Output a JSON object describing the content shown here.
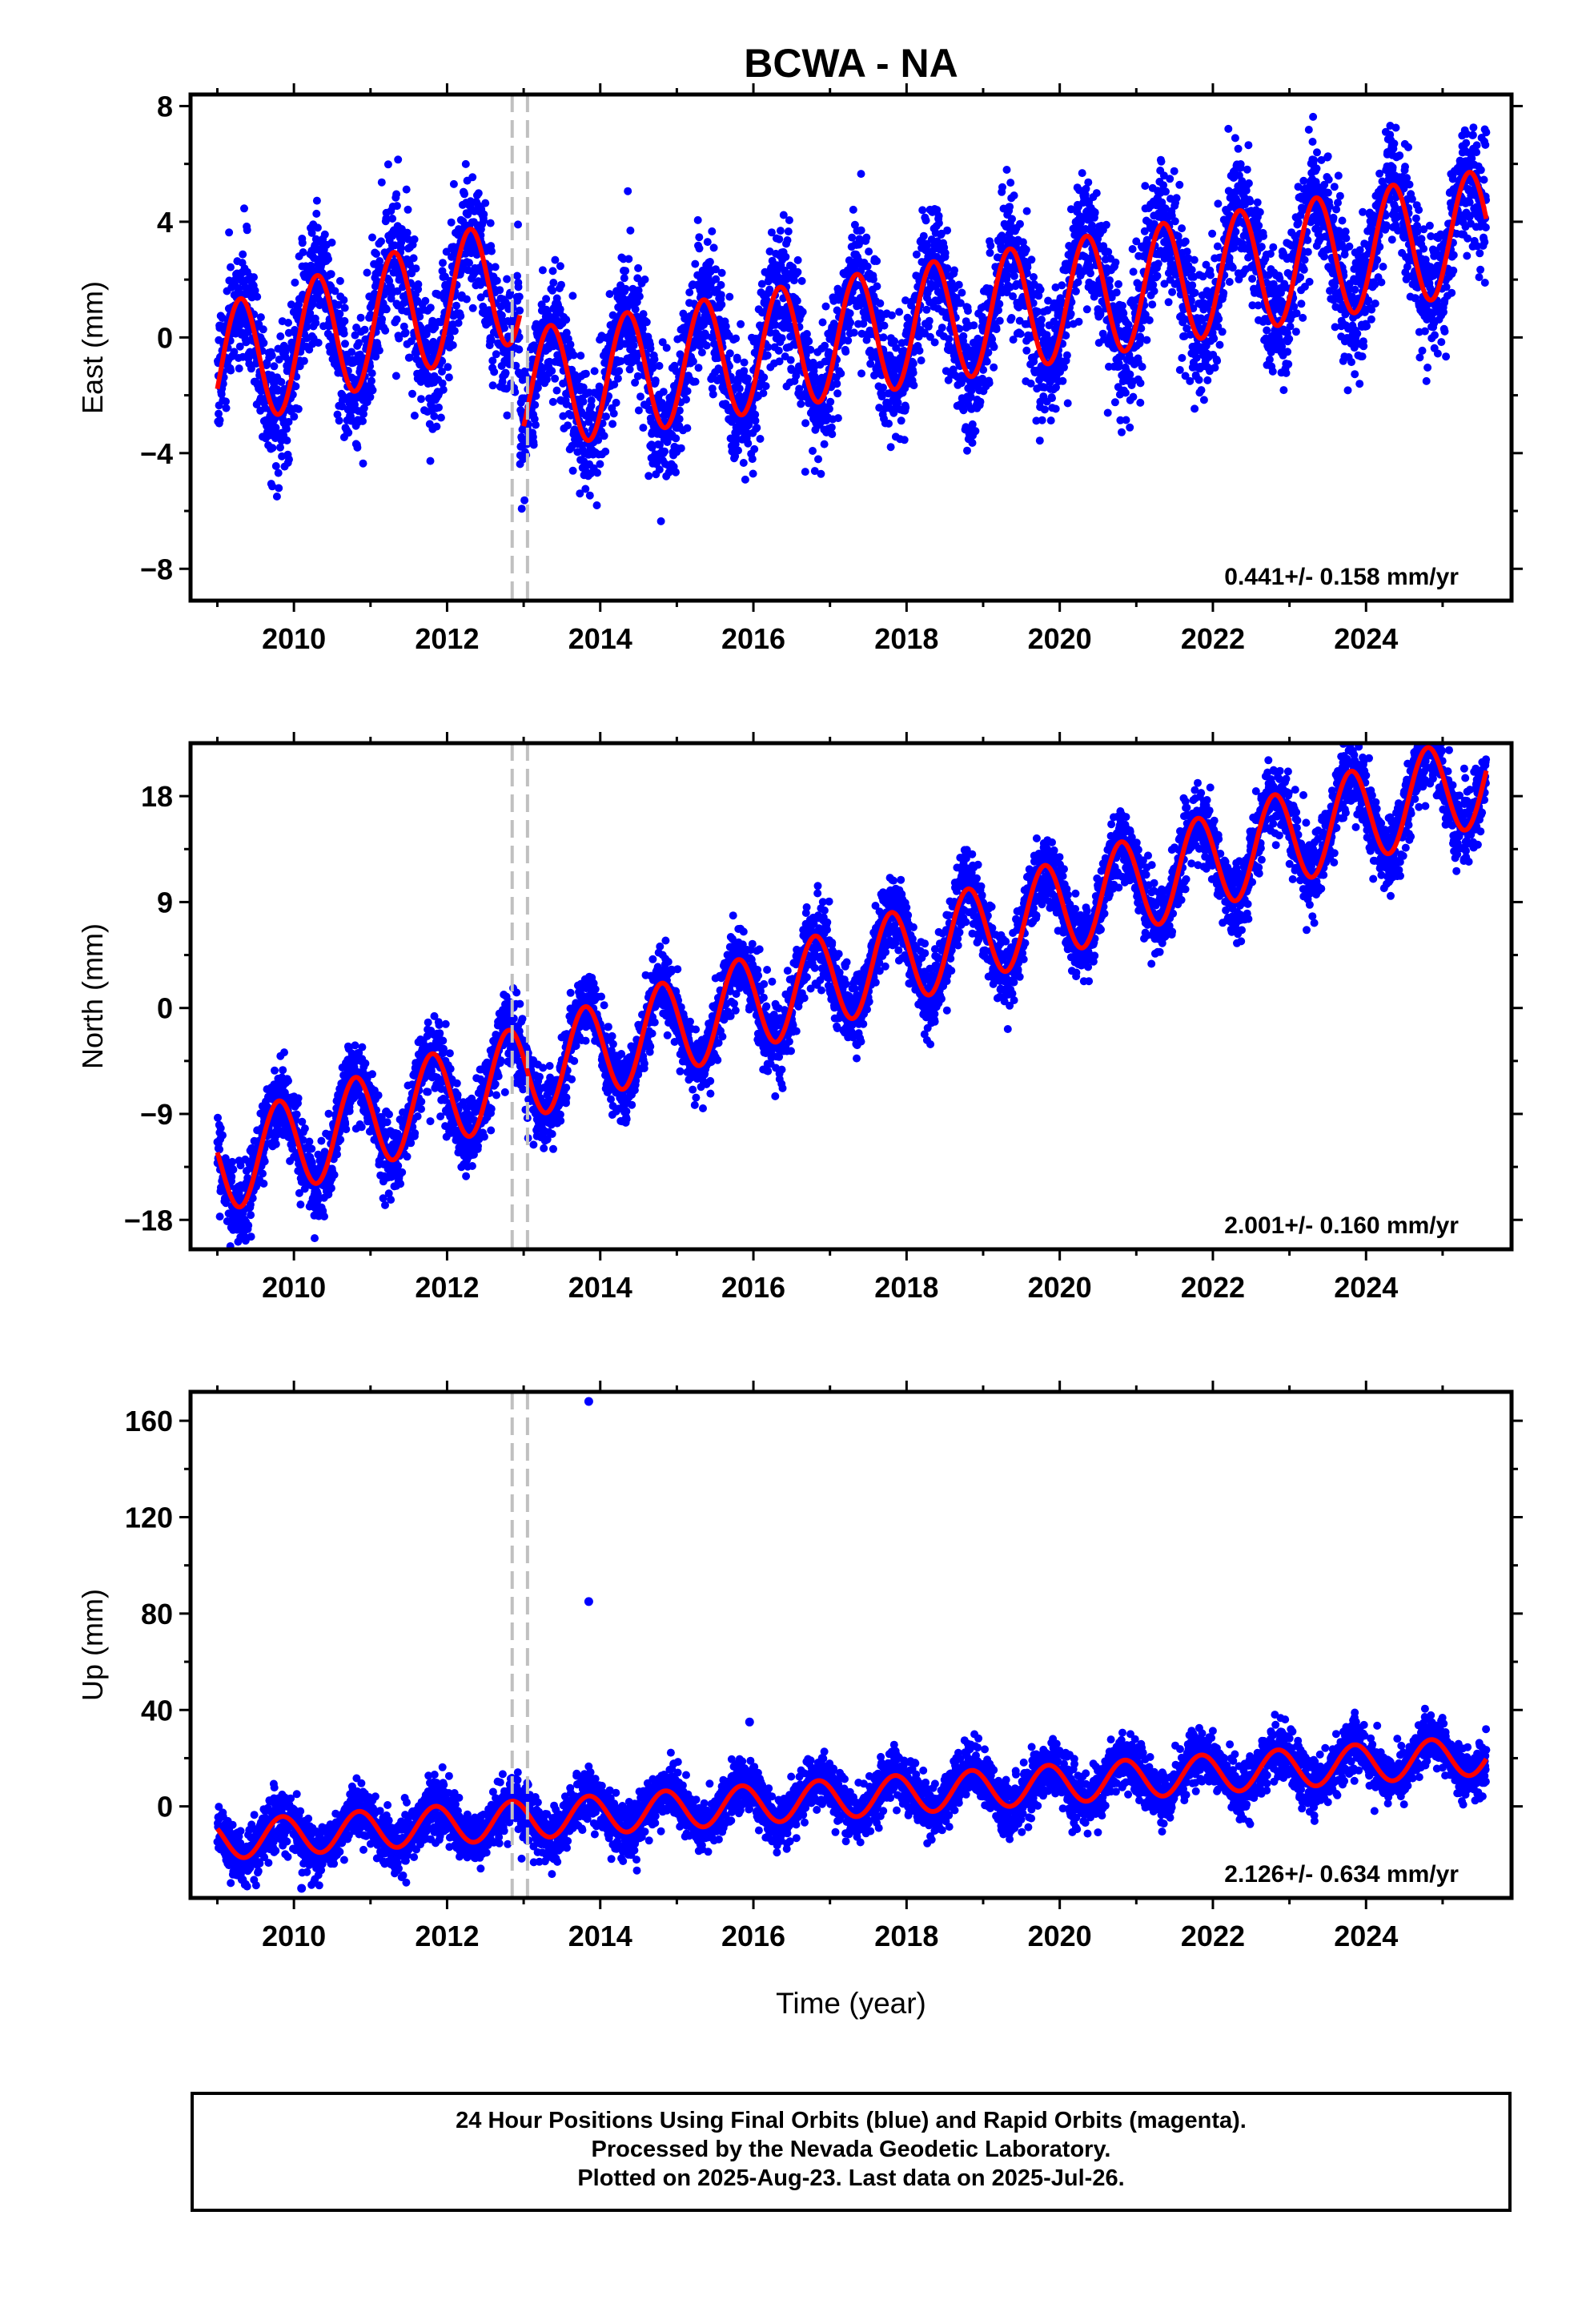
{
  "figure": {
    "title": "BCWA - NA",
    "xlabel": "Time (year)"
  },
  "colors": {
    "points": "#0000ff",
    "model": "#ff0000",
    "breaks": "#c0c0c0",
    "frame": "#000000"
  },
  "chart_data": [
    {
      "type": "scatter",
      "ylabel": "East (mm)",
      "rate_label": "0.441+/- 0.158 mm/yr",
      "xlim": [
        2008.65,
        2025.9
      ],
      "ylim": [
        -9.1,
        8.4
      ],
      "yticks": [
        -8,
        -4,
        0,
        4,
        8
      ],
      "xticks": [
        2010,
        2012,
        2014,
        2016,
        2018,
        2020,
        2022,
        2024
      ],
      "breaks": [
        2012.85,
        2013.05
      ],
      "data_span": [
        2009.0,
        2025.57
      ],
      "rate": 0.441,
      "seasonal_amplitude": 2.3,
      "noise": 1.1,
      "series": [
        {
          "type": "scatter",
          "values_summary": "daily positions, blue"
        },
        {
          "type": "line",
          "values_summary": "model fit, red",
          "segments": [
            {
              "range": [
                2009.0,
                2012.95
              ],
              "offset": -1.1,
              "trend": 0.8,
              "amplitude": 2.2,
              "phase": 0.05
            },
            {
              "range": [
                2013.0,
                2025.57
              ],
              "offset": -3.6,
              "trend": 0.441,
              "amplitude": 2.1,
              "phase": 0.1
            }
          ]
        }
      ]
    },
    {
      "type": "scatter",
      "ylabel": "North (mm)",
      "rate_label": "2.001+/- 0.160 mm/yr",
      "xlim": [
        2008.65,
        2025.9
      ],
      "ylim": [
        -20.5,
        22.5
      ],
      "yticks": [
        -18,
        -9,
        0,
        9,
        18
      ],
      "xticks": [
        2010,
        2012,
        2014,
        2016,
        2018,
        2020,
        2022,
        2024
      ],
      "breaks": [
        2012.85,
        2013.05
      ],
      "data_span": [
        2009.0,
        2025.57
      ],
      "rate": 2.001,
      "seasonal_amplitude": 4.0,
      "noise": 1.6,
      "series": [
        {
          "type": "scatter",
          "values_summary": "daily positions, blue"
        },
        {
          "type": "line",
          "values_summary": "model fit, red",
          "segments": [
            {
              "range": [
                2009.0,
                2025.57
              ],
              "offset": -13.5,
              "trend": 2.001,
              "amplitude": 4.0,
              "phase": 0.55
            }
          ]
        }
      ]
    },
    {
      "type": "scatter",
      "ylabel": "Up (mm)",
      "rate_label": "2.126+/- 0.634 mm/yr",
      "xlim": [
        2008.65,
        2025.9
      ],
      "ylim": [
        -38,
        172
      ],
      "yticks": [
        0,
        40,
        80,
        120,
        160
      ],
      "xticks": [
        2010,
        2012,
        2014,
        2016,
        2018,
        2020,
        2022,
        2024
      ],
      "breaks": [
        2012.85,
        2013.05
      ],
      "data_span": [
        2009.0,
        2025.57
      ],
      "rate": 2.126,
      "seasonal_amplitude": 8.0,
      "noise": 5.5,
      "outliers": [
        [
          2013.85,
          168
        ],
        [
          2013.85,
          85
        ],
        [
          2015.95,
          35
        ],
        [
          2010.1,
          -34
        ]
      ],
      "series": [
        {
          "type": "scatter",
          "values_summary": "daily positions, blue"
        },
        {
          "type": "line",
          "values_summary": "model fit, red",
          "segments": [
            {
              "range": [
                2009.0,
                2025.57
              ],
              "offset": -14,
              "trend": 2.126,
              "amplitude": 8.0,
              "phase": 0.6
            }
          ]
        }
      ]
    }
  ],
  "footer": {
    "line1": "24 Hour Positions Using Final Orbits (blue) and Rapid Orbits (magenta).",
    "line2": "Processed by the Nevada Geodetic Laboratory.",
    "line3": "Plotted on 2025-Aug-23. Last data on 2025-Jul-26."
  }
}
